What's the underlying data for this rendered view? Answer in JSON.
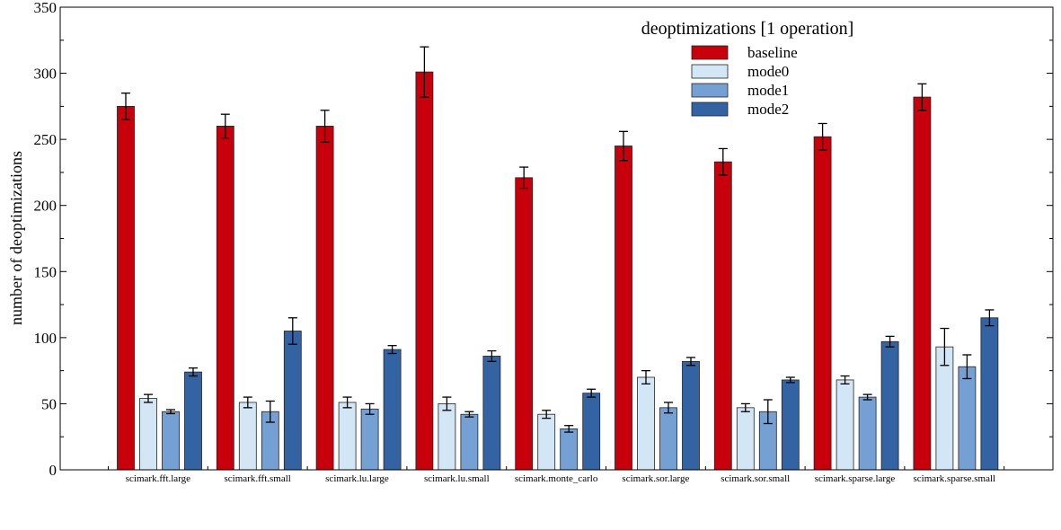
{
  "chart_data": {
    "type": "bar",
    "title": "",
    "xlabel": "",
    "ylabel": "number of deoptimizations",
    "ylim": [
      0,
      350
    ],
    "yticks": [
      0,
      50,
      100,
      150,
      200,
      250,
      300,
      350
    ],
    "grid": false,
    "legend": {
      "title": "deoptimizations [1 operation]",
      "placement": "top-right"
    },
    "categories": [
      "scimark.fft.large",
      "scimark.fft.small",
      "scimark.lu.large",
      "scimark.lu.small",
      "scimark.monte_carlo",
      "scimark.sor.large",
      "scimark.sor.small",
      "scimark.sparse.large",
      "scimark.sparse.small"
    ],
    "series": [
      {
        "name": "baseline",
        "color": "#c8000b",
        "values": [
          275,
          260,
          260,
          301,
          221,
          245,
          233,
          252,
          282
        ],
        "errors": [
          10,
          9,
          12,
          19,
          8,
          11,
          10,
          10,
          10
        ]
      },
      {
        "name": "mode0",
        "color": "#d2e6f5",
        "values": [
          54,
          51,
          51,
          50,
          42,
          70,
          47,
          68,
          93
        ],
        "errors": [
          3,
          4,
          4,
          5,
          3,
          5,
          3,
          3,
          14
        ]
      },
      {
        "name": "mode1",
        "color": "#75a0d3",
        "values": [
          44,
          44,
          46,
          42,
          31,
          47,
          44,
          55,
          78
        ],
        "errors": [
          1.5,
          8,
          4,
          2,
          2.5,
          4,
          9,
          2,
          9
        ]
      },
      {
        "name": "mode2",
        "color": "#3463a3",
        "values": [
          74,
          105,
          91,
          86,
          58,
          82,
          68,
          97,
          115
        ],
        "errors": [
          3,
          10,
          3,
          4,
          3,
          3,
          2,
          4,
          6
        ]
      }
    ]
  }
}
